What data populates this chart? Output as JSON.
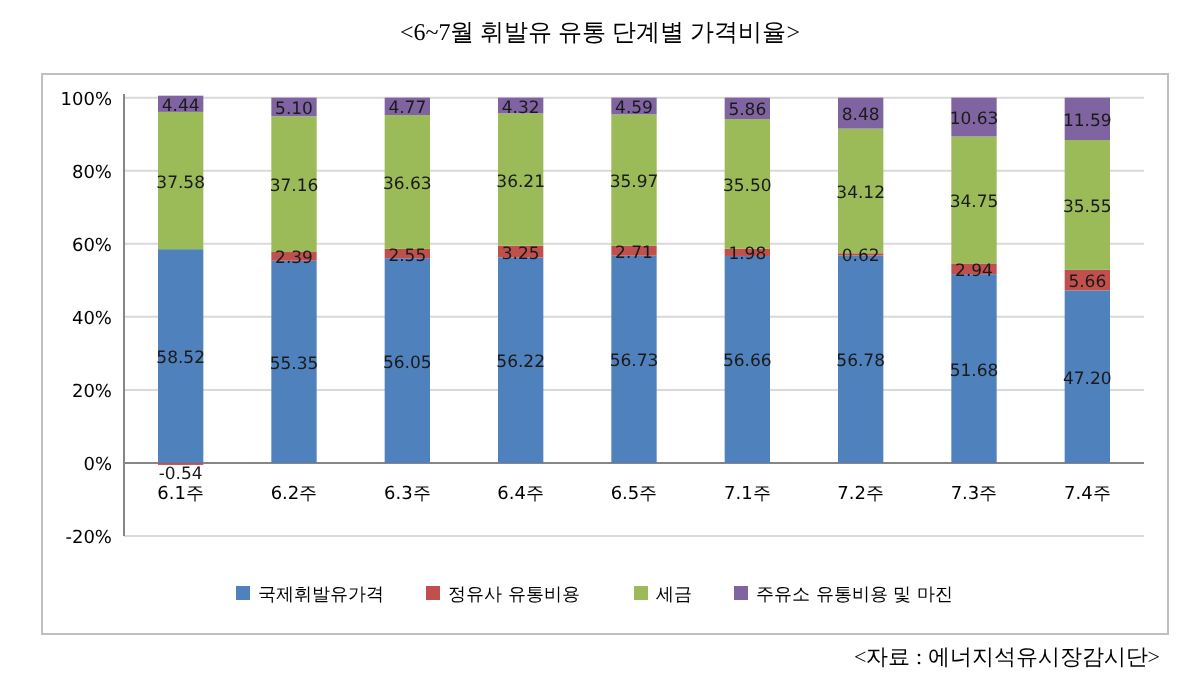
{
  "chart_data": {
    "type": "bar",
    "stacked": true,
    "title": "<6~7월 휘발유 유통 단계별 가격비율>",
    "categories": [
      "6.1주",
      "6.2주",
      "6.3주",
      "6.4주",
      "6.5주",
      "7.1주",
      "7.2주",
      "7.3주",
      "7.4주"
    ],
    "series": [
      {
        "name": "국제휘발유가격",
        "color": "#4f81bd",
        "values": [
          58.52,
          55.35,
          56.05,
          56.22,
          56.73,
          56.66,
          56.78,
          51.68,
          47.2
        ],
        "value_labels": [
          "58.52",
          "55.35",
          "56.05",
          "56.22",
          "56.73",
          "56.66",
          "56.78",
          "51.68",
          "47.20"
        ]
      },
      {
        "name": "정유사 유통비용",
        "color": "#c0504d",
        "values": [
          -0.54,
          2.39,
          2.55,
          3.25,
          2.71,
          1.98,
          0.62,
          2.94,
          5.66
        ],
        "value_labels": [
          "-0.54",
          "2.39",
          "2.55",
          "3.25",
          "2.71",
          "1.98",
          "0.62",
          "2.94",
          "5.66"
        ]
      },
      {
        "name": "세금",
        "color": "#9bbb59",
        "values": [
          37.58,
          37.16,
          36.63,
          36.21,
          35.97,
          35.5,
          34.12,
          34.75,
          35.55
        ],
        "value_labels": [
          "37.58",
          "37.16",
          "36.63",
          "36.21",
          "35.97",
          "35.50",
          "34.12",
          "34.75",
          "35.55"
        ]
      },
      {
        "name": "주유소 유통비용 및 마진",
        "color": "#8064a2",
        "values": [
          4.44,
          5.1,
          4.77,
          4.32,
          4.59,
          5.86,
          8.48,
          10.63,
          11.59
        ],
        "value_labels": [
          "4.44",
          "5.10",
          "4.77",
          "4.32",
          "4.59",
          "5.86",
          "8.48",
          "10.63",
          "11.59"
        ]
      }
    ],
    "ylim": [
      -20,
      101
    ],
    "yticks": [
      {
        "value": -20,
        "label": "-20%"
      },
      {
        "value": 0,
        "label": "0%"
      },
      {
        "value": 20,
        "label": "20%"
      },
      {
        "value": 40,
        "label": "40%"
      },
      {
        "value": 60,
        "label": "60%"
      },
      {
        "value": 80,
        "label": "80%"
      },
      {
        "value": 100,
        "label": "100%"
      }
    ],
    "grid": "y",
    "legend": "bottom",
    "annotations": [
      "<자료 : 에너지석유시장감시단>"
    ]
  }
}
